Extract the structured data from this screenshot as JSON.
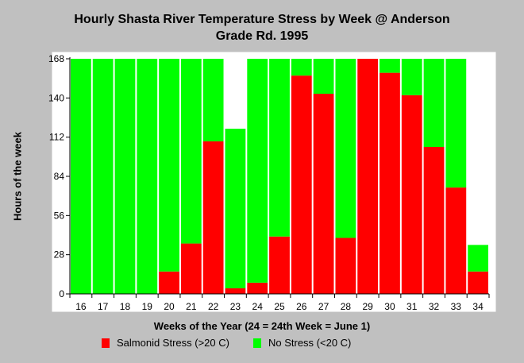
{
  "title_line1": "Hourly Shasta River Temperature Stress by Week @ Anderson",
  "title_line2": "Grade Rd. 1995",
  "colors": {
    "stress": "#ff0000",
    "no_stress": "#00ff00",
    "background": "#c0c0c0",
    "plot_bg": "#ffffff"
  },
  "chart_data": {
    "type": "bar",
    "stacked": true,
    "title": "Hourly Shasta River Temperature Stress by Week @ Anderson Grade Rd. 1995",
    "xlabel": "Weeks of the Year (24 = 24th Week = June 1)",
    "ylabel": "Hours of the week",
    "ylim": [
      0,
      168
    ],
    "yticks": [
      0,
      28,
      56,
      84,
      112,
      140,
      168
    ],
    "categories": [
      "16",
      "17",
      "18",
      "19",
      "20",
      "21",
      "22",
      "23",
      "24",
      "25",
      "26",
      "27",
      "28",
      "29",
      "30",
      "31",
      "32",
      "33",
      "34"
    ],
    "series": [
      {
        "name": "Salmonid Stress (>20 C)",
        "color": "#ff0000",
        "values": [
          0,
          0,
          0,
          0,
          16,
          36,
          109,
          4,
          8,
          41,
          156,
          143,
          40,
          168,
          158,
          142,
          105,
          76,
          16
        ]
      },
      {
        "name": "No Stress (<20 C)",
        "color": "#00ff00",
        "values": [
          168,
          168,
          168,
          168,
          152,
          132,
          59,
          114,
          160,
          127,
          12,
          25,
          128,
          0,
          10,
          26,
          63,
          92,
          19
        ]
      }
    ],
    "grid": false,
    "legend": "bottom"
  }
}
